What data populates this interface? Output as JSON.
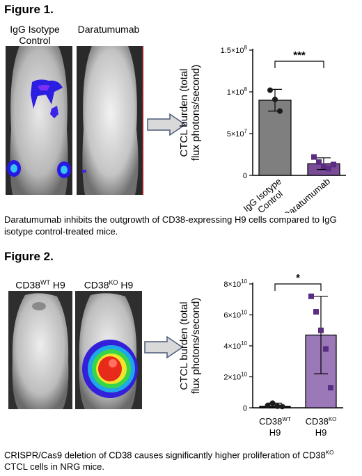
{
  "figure1": {
    "title": "Figure 1.",
    "mouse_labels": [
      "IgG Isotype\nControl",
      "Daratumumab"
    ],
    "caption": "Daratumumab inhibits the outgrowth of CD38-expressing H9 cells compared to IgG isotype control-treated mice.",
    "significance": "***"
  },
  "figure2": {
    "title": "Figure 2.",
    "mouse_labels": [
      {
        "base": "CD38",
        "sup": "WT",
        "rest": " H9"
      },
      {
        "base": "CD38",
        "sup": "KO",
        "rest": " H9"
      }
    ],
    "caption_pre": "CRISPR/Cas9 deletion of CD38 causes significantly higher proliferation of CD38",
    "caption_sup": "KO",
    "caption_post": " CTCL cells in NRG mice.",
    "significance": "*"
  },
  "chart_data": [
    {
      "type": "bar",
      "ylabel": "CTCL burden (total flux photons/second)",
      "categories": [
        "IgG Isotype Control",
        "Daratumumab"
      ],
      "values": [
        90000000,
        14000000
      ],
      "error": [
        13000000,
        7000000
      ],
      "points": [
        [
          102000000,
          91000000,
          77000000
        ],
        [
          22000000,
          16000000,
          11000000,
          8000000,
          13000000
        ]
      ],
      "ylim": [
        0,
        150000000
      ],
      "yticks": [
        {
          "v": 0,
          "base": "0",
          "exp": ""
        },
        {
          "v": 50000000,
          "base": "5×10",
          "exp": "7"
        },
        {
          "v": 100000000,
          "base": "1×10",
          "exp": "8"
        },
        {
          "v": 150000000,
          "base": "1.5×10",
          "exp": "8"
        }
      ],
      "colors": [
        "#7f7f7f",
        "#7a4b96"
      ]
    },
    {
      "type": "bar",
      "ylabel": "CTCL burden (total flux photons/second)",
      "categories": [
        {
          "base": "CD38",
          "sup": "WT",
          "line2": "H9"
        },
        {
          "base": "CD38",
          "sup": "KO",
          "line2": "H9"
        }
      ],
      "values": [
        1000000000,
        47000000000
      ],
      "error": [
        2000000000,
        25000000000
      ],
      "points": [
        [
          1500000000,
          3000000000,
          1000000000,
          800000000
        ],
        [
          72000000000,
          62000000000,
          50000000000,
          38000000000,
          13000000000
        ]
      ],
      "ylim": [
        0,
        80000000000
      ],
      "yticks": [
        {
          "v": 0,
          "base": "0",
          "exp": ""
        },
        {
          "v": 20000000000,
          "base": "2×10",
          "exp": "10"
        },
        {
          "v": 40000000000,
          "base": "4×10",
          "exp": "10"
        },
        {
          "v": 60000000000,
          "base": "6×10",
          "exp": "10"
        },
        {
          "v": 80000000000,
          "base": "8×10",
          "exp": "10"
        }
      ],
      "colors": [
        "#1a1a1a",
        "#9b79b8"
      ]
    }
  ]
}
